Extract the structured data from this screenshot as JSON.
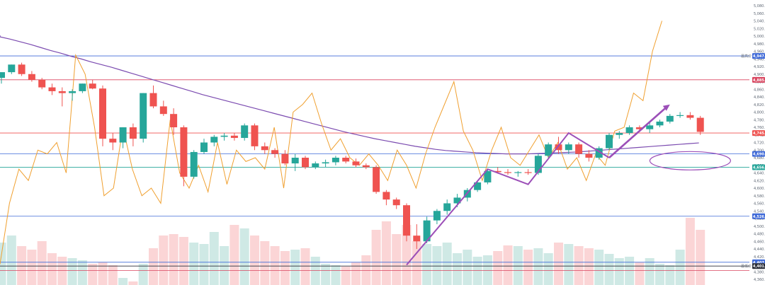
{
  "chart_data": {
    "type": "candlestick",
    "price_axis": {
      "min": 4360,
      "max": 5080,
      "ticks": [
        "5,080.00",
        "5,060.00",
        "5,040.00",
        "5,020.00",
        "5,000.00",
        "4,980.00",
        "4,960.00",
        "4,940.00",
        "4,920.00",
        "4,900.00",
        "4,880.00",
        "4,860.00",
        "4,840.00",
        "4,820.00",
        "4,800.00",
        "4,780.00",
        "4,760.00",
        "4,740.00",
        "4,720.00",
        "4,700.00",
        "4,680.00",
        "4,660.00",
        "4,640.00",
        "4,620.00",
        "4,600.00",
        "4,580.00",
        "4,560.00",
        "4,540.00",
        "4,520.00",
        "4,500.00",
        "4,480.00",
        "4,460.00",
        "4,440.00",
        "4,420.00",
        "4,400.00",
        "4,380.00",
        "4,360.00"
      ]
    },
    "horizontal_levels": [
      {
        "value": 4947.78,
        "label": "4,947.78",
        "color": "#3f6ad8",
        "tag": "最高价"
      },
      {
        "value": 4885.0,
        "label": "4,885.49",
        "color": "#d9455f"
      },
      {
        "value": 4745.0,
        "label": "4,745.59",
        "color": "#ef5350"
      },
      {
        "value": 4690.0,
        "label": "4,690.12",
        "color": "#3f6ad8"
      },
      {
        "value": 4655.0,
        "label": "4,656.17",
        "color": "#26a69a"
      },
      {
        "value": 4526.0,
        "label": "4,526.95",
        "color": "#3f6ad8"
      },
      {
        "value": 4405.0,
        "label": "4,407.57",
        "color": "#3f6ad8"
      },
      {
        "value": 4395.0,
        "label": "4,401.20",
        "color": "#2a2e39",
        "tag": "最低价"
      },
      {
        "value": 4383.0,
        "label": "",
        "color": "#d9455f"
      }
    ],
    "candles": [
      {
        "o": 4890,
        "h": 4905,
        "l": 4875,
        "c": 4905
      },
      {
        "o": 4905,
        "h": 4925,
        "l": 4900,
        "c": 4925
      },
      {
        "o": 4925,
        "h": 4930,
        "l": 4895,
        "c": 4900
      },
      {
        "o": 4900,
        "h": 4908,
        "l": 4880,
        "c": 4885
      },
      {
        "o": 4885,
        "h": 4890,
        "l": 4860,
        "c": 4865
      },
      {
        "o": 4865,
        "h": 4875,
        "l": 4845,
        "c": 4855
      },
      {
        "o": 4855,
        "h": 4865,
        "l": 4815,
        "c": 4850
      },
      {
        "o": 4850,
        "h": 4860,
        "l": 4830,
        "c": 4855
      },
      {
        "o": 4855,
        "h": 4875,
        "l": 4850,
        "c": 4875
      },
      {
        "o": 4875,
        "h": 4885,
        "l": 4860,
        "c": 4862
      },
      {
        "o": 4862,
        "h": 4870,
        "l": 4710,
        "c": 4730
      },
      {
        "o": 4730,
        "h": 4745,
        "l": 4700,
        "c": 4720
      },
      {
        "o": 4720,
        "h": 4760,
        "l": 4705,
        "c": 4760
      },
      {
        "o": 4760,
        "h": 4770,
        "l": 4710,
        "c": 4730
      },
      {
        "o": 4730,
        "h": 4850,
        "l": 4720,
        "c": 4850
      },
      {
        "o": 4850,
        "h": 4870,
        "l": 4810,
        "c": 4815
      },
      {
        "o": 4815,
        "h": 4830,
        "l": 4790,
        "c": 4795
      },
      {
        "o": 4795,
        "h": 4810,
        "l": 4740,
        "c": 4760
      },
      {
        "o": 4760,
        "h": 4765,
        "l": 4605,
        "c": 4630
      },
      {
        "o": 4630,
        "h": 4700,
        "l": 4625,
        "c": 4695
      },
      {
        "o": 4695,
        "h": 4730,
        "l": 4690,
        "c": 4720
      },
      {
        "o": 4720,
        "h": 4740,
        "l": 4710,
        "c": 4735
      },
      {
        "o": 4735,
        "h": 4745,
        "l": 4725,
        "c": 4738
      },
      {
        "o": 4738,
        "h": 4745,
        "l": 4725,
        "c": 4732
      },
      {
        "o": 4732,
        "h": 4770,
        "l": 4725,
        "c": 4765
      },
      {
        "o": 4765,
        "h": 4770,
        "l": 4700,
        "c": 4710
      },
      {
        "o": 4710,
        "h": 4720,
        "l": 4690,
        "c": 4700
      },
      {
        "o": 4700,
        "h": 4705,
        "l": 4680,
        "c": 4690
      },
      {
        "o": 4690,
        "h": 4700,
        "l": 4660,
        "c": 4665
      },
      {
        "o": 4665,
        "h": 4690,
        "l": 4645,
        "c": 4680
      },
      {
        "o": 4680,
        "h": 4685,
        "l": 4650,
        "c": 4655
      },
      {
        "o": 4655,
        "h": 4670,
        "l": 4650,
        "c": 4665
      },
      {
        "o": 4665,
        "h": 4675,
        "l": 4655,
        "c": 4668
      },
      {
        "o": 4668,
        "h": 4685,
        "l": 4660,
        "c": 4680
      },
      {
        "o": 4680,
        "h": 4685,
        "l": 4665,
        "c": 4670
      },
      {
        "o": 4670,
        "h": 4678,
        "l": 4655,
        "c": 4660
      },
      {
        "o": 4660,
        "h": 4665,
        "l": 4650,
        "c": 4655
      },
      {
        "o": 4655,
        "h": 4660,
        "l": 4585,
        "c": 4590
      },
      {
        "o": 4590,
        "h": 4595,
        "l": 4555,
        "c": 4570
      },
      {
        "o": 4570,
        "h": 4575,
        "l": 4545,
        "c": 4555
      },
      {
        "o": 4555,
        "h": 4560,
        "l": 4460,
        "c": 4475
      },
      {
        "o": 4475,
        "h": 4505,
        "l": 4440,
        "c": 4460
      },
      {
        "o": 4460,
        "h": 4525,
        "l": 4455,
        "c": 4515
      },
      {
        "o": 4515,
        "h": 4545,
        "l": 4505,
        "c": 4540
      },
      {
        "o": 4540,
        "h": 4570,
        "l": 4530,
        "c": 4560
      },
      {
        "o": 4560,
        "h": 4585,
        "l": 4550,
        "c": 4575
      },
      {
        "o": 4575,
        "h": 4600,
        "l": 4565,
        "c": 4595
      },
      {
        "o": 4595,
        "h": 4620,
        "l": 4590,
        "c": 4615
      },
      {
        "o": 4615,
        "h": 4650,
        "l": 4610,
        "c": 4645
      },
      {
        "o": 4645,
        "h": 4655,
        "l": 4638,
        "c": 4642
      },
      {
        "o": 4642,
        "h": 4650,
        "l": 4635,
        "c": 4640
      },
      {
        "o": 4640,
        "h": 4645,
        "l": 4630,
        "c": 4642
      },
      {
        "o": 4642,
        "h": 4650,
        "l": 4635,
        "c": 4640
      },
      {
        "o": 4640,
        "h": 4690,
        "l": 4635,
        "c": 4685
      },
      {
        "o": 4685,
        "h": 4720,
        "l": 4680,
        "c": 4715
      },
      {
        "o": 4715,
        "h": 4735,
        "l": 4690,
        "c": 4700
      },
      {
        "o": 4700,
        "h": 4720,
        "l": 4690,
        "c": 4715
      },
      {
        "o": 4715,
        "h": 4720,
        "l": 4680,
        "c": 4690
      },
      {
        "o": 4690,
        "h": 4700,
        "l": 4670,
        "c": 4680
      },
      {
        "o": 4680,
        "h": 4710,
        "l": 4675,
        "c": 4705
      },
      {
        "o": 4705,
        "h": 4745,
        "l": 4700,
        "c": 4740
      },
      {
        "o": 4740,
        "h": 4750,
        "l": 4730,
        "c": 4745
      },
      {
        "o": 4745,
        "h": 4765,
        "l": 4740,
        "c": 4760
      },
      {
        "o": 4760,
        "h": 4765,
        "l": 4750,
        "c": 4755
      },
      {
        "o": 4755,
        "h": 4775,
        "l": 4745,
        "c": 4765
      },
      {
        "o": 4765,
        "h": 4780,
        "l": 4760,
        "c": 4775
      },
      {
        "o": 4775,
        "h": 4795,
        "l": 4770,
        "c": 4790
      },
      {
        "o": 4790,
        "h": 4800,
        "l": 4785,
        "c": 4792
      },
      {
        "o": 4792,
        "h": 4800,
        "l": 4780,
        "c": 4785
      },
      {
        "o": 4785,
        "h": 4790,
        "l": 4740,
        "c": 4748
      }
    ],
    "ma_line": [
      4998,
      4992,
      4985,
      4978,
      4970,
      4962,
      4955,
      4947,
      4940,
      4932,
      4925,
      4918,
      4910,
      4902,
      4894,
      4886,
      4878,
      4870,
      4862,
      4854,
      4846,
      4839,
      4832,
      4825,
      4818,
      4811,
      4804,
      4797,
      4790,
      4783,
      4776,
      4769,
      4762,
      4755,
      4748,
      4742,
      4736,
      4730,
      4725,
      4720,
      4715,
      4710,
      4706,
      4702,
      4699,
      4697,
      4695,
      4693,
      4692,
      4691,
      4690,
      4690,
      4690,
      4691,
      4692,
      4693,
      4694,
      4695,
      4697,
      4699,
      4701,
      4703,
      4705,
      4707,
      4709,
      4711,
      4713,
      4715,
      4717,
      4719
    ],
    "oscillator_line": [
      4400,
      4560,
      4650,
      4620,
      4700,
      4690,
      4720,
      4640,
      4950,
      4900,
      4760,
      4580,
      4600,
      4760,
      4650,
      4580,
      4600,
      4560,
      4780,
      4640,
      4600,
      4660,
      4590,
      4720,
      4610,
      4700,
      4670,
      4680,
      4650,
      4760,
      4600,
      4800,
      4820,
      4850,
      4770,
      4700,
      4730,
      4680,
      4660,
      4690,
      4660,
      4620,
      4700,
      4660,
      4600,
      4690,
      4760,
      4820,
      4880,
      4750,
      4700,
      4620,
      4700,
      4760,
      4680,
      4660,
      4700,
      4740,
      4680,
      4720,
      4650,
      4680,
      4620,
      4690,
      4660,
      4750,
      4760,
      4850,
      4830,
      4960,
      5040
    ],
    "volume_bars": [
      0.6,
      0.7,
      0.55,
      0.5,
      0.62,
      0.45,
      0.4,
      0.38,
      0.35,
      0.3,
      0.32,
      0.28,
      0.1,
      0.05,
      0.3,
      0.52,
      0.7,
      0.72,
      0.68,
      0.6,
      0.58,
      0.75,
      0.55,
      0.85,
      0.8,
      0.7,
      0.62,
      0.55,
      0.48,
      0.5,
      0.52,
      0.4,
      0.3,
      0.28,
      0.26,
      0.32,
      0.42,
      0.78,
      0.9,
      0.72,
      0.85,
      0.62,
      0.58,
      0.55,
      0.6,
      0.45,
      0.5,
      0.4,
      0.42,
      0.48,
      0.56,
      0.55,
      0.5,
      0.52,
      0.45,
      0.6,
      0.58,
      0.55,
      0.52,
      0.5,
      0.44,
      0.38,
      0.4,
      0.32,
      0.38,
      0.3,
      0.28,
      0.5,
      0.95,
      0.78
    ],
    "annotations": {
      "zigzag_points": [
        [
          40,
          4398
        ],
        [
          48,
          4650
        ],
        [
          52,
          4610
        ],
        [
          56,
          4745
        ],
        [
          60,
          4680
        ],
        [
          66,
          4820
        ]
      ],
      "ellipse_center": [
        68,
        4672
      ]
    }
  }
}
